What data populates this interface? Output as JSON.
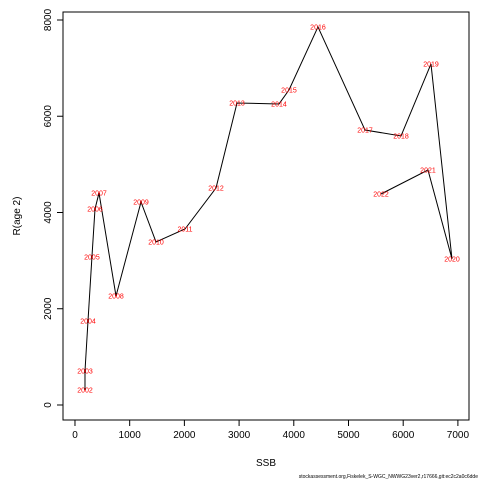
{
  "chart_data": {
    "type": "line",
    "xlabel": "SSB",
    "ylabel": "R(age 2)",
    "footnote": "stockassessment.org,Fiskelek_S-WGC_NWWG23ver2,r17666,git:ec2c2a0c6dde",
    "x": [
      183,
      183,
      238,
      310,
      366,
      439,
      750,
      1207,
      1481,
      2011,
      2578,
      2962,
      3729,
      3912,
      4442,
      5302,
      5960,
      6508,
      6892,
      6453,
      5594
    ],
    "values": [
      312,
      706,
      1745,
      3075,
      4073,
      4405,
      2265,
      4218,
      3387,
      3657,
      4509,
      6275,
      6255,
      6545,
      7855,
      5714,
      5590,
      7086,
      3034,
      4883,
      4384
    ],
    "labels": [
      "2002",
      "2003",
      "2004",
      "2005",
      "2006",
      "2007",
      "2008",
      "2009",
      "2010",
      "2011",
      "2012",
      "2013",
      "2014",
      "2015",
      "2016",
      "2017",
      "2018",
      "2019",
      "2020",
      "2021",
      "2022"
    ],
    "color": "#000000",
    "label_color": "#ff0000",
    "xlim": [
      -219,
      7203
    ],
    "ylim": [
      -312,
      8166
    ],
    "xticks": [
      0,
      1000,
      2000,
      3000,
      4000,
      5000,
      6000,
      7000
    ],
    "yticks": [
      0,
      2000,
      4000,
      6000,
      8000
    ],
    "grid": false
  }
}
